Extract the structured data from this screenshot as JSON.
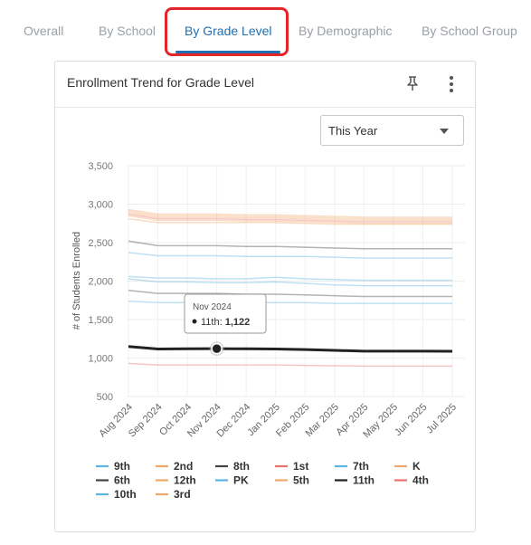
{
  "tabs": [
    {
      "label": "Overall",
      "active": false
    },
    {
      "label": "By School",
      "active": false
    },
    {
      "label": "By Grade Level",
      "active": true
    },
    {
      "label": "By Demographic",
      "active": false
    },
    {
      "label": "By School Group",
      "active": false
    }
  ],
  "card": {
    "title": "Enrollment Trend for Grade Level",
    "pin_icon": "pin-icon",
    "menu_icon": "kebab-menu-icon"
  },
  "period_select": {
    "value": "This Year"
  },
  "tooltip": {
    "date": "Nov 2024",
    "series": "11th",
    "value": "1,122"
  },
  "chart_data": {
    "type": "line",
    "ylabel": "# of Students Enrolled",
    "ylim": [
      500,
      3500
    ],
    "yticks": [
      "3,500",
      "3,000",
      "2,500",
      "2,000",
      "1,500",
      "1,000",
      "500"
    ],
    "ytick_values": [
      3500,
      3000,
      2500,
      2000,
      1500,
      1000,
      500
    ],
    "categories": [
      "Aug 2024",
      "Sep 2024",
      "Oct 2024",
      "Nov 2024",
      "Dec 2024",
      "Jan 2025",
      "Feb 2025",
      "Mar 2025",
      "Apr 2025",
      "May 2025",
      "Jun 2025",
      "Jul 2025"
    ],
    "highlight_series": "11th",
    "grid": true,
    "legend_position": "bottom",
    "series": [
      {
        "name": "9th",
        "color": "#5bb5e0",
        "values": [
          2060,
          2040,
          2040,
          2030,
          2030,
          2050,
          2030,
          2020,
          2010,
          2010,
          2010,
          2010
        ]
      },
      {
        "name": "2nd",
        "color": "#f0a86a",
        "values": [
          2930,
          2870,
          2870,
          2870,
          2860,
          2860,
          2850,
          2840,
          2830,
          2830,
          2830,
          2830
        ]
      },
      {
        "name": "8th",
        "color": "#444444",
        "values": [
          2520,
          2460,
          2460,
          2460,
          2450,
          2450,
          2440,
          2430,
          2420,
          2420,
          2420,
          2420
        ]
      },
      {
        "name": "1st",
        "color": "#e8736a",
        "values": [
          2870,
          2810,
          2810,
          2810,
          2800,
          2800,
          2790,
          2780,
          2770,
          2770,
          2770,
          2770
        ]
      },
      {
        "name": "7th",
        "color": "#5bb5e0",
        "values": [
          2370,
          2330,
          2330,
          2330,
          2320,
          2320,
          2320,
          2310,
          2300,
          2300,
          2300,
          2300
        ]
      },
      {
        "name": "K",
        "color": "#f0a86a",
        "values": [
          2890,
          2830,
          2830,
          2830,
          2820,
          2820,
          2810,
          2800,
          2790,
          2790,
          2790,
          2790
        ]
      },
      {
        "name": "6th",
        "color": "#444444",
        "values": [
          1880,
          1840,
          1840,
          1840,
          1830,
          1830,
          1820,
          1810,
          1800,
          1800,
          1800,
          1800
        ]
      },
      {
        "name": "12th",
        "color": "#f0a86a",
        "values": [
          2910,
          2850,
          2850,
          2850,
          2840,
          2840,
          2830,
          2820,
          2810,
          2810,
          2810,
          2810
        ]
      },
      {
        "name": "PK",
        "color": "#5bb5e0",
        "values": [
          1740,
          1720,
          1720,
          1720,
          1720,
          1720,
          1720,
          1710,
          1710,
          1710,
          1710,
          1710
        ]
      },
      {
        "name": "5th",
        "color": "#f0a86a",
        "values": [
          2810,
          2760,
          2760,
          2760,
          2760,
          2760,
          2750,
          2740,
          2740,
          2740,
          2740,
          2740
        ]
      },
      {
        "name": "11th",
        "color": "#222222",
        "values": [
          1150,
          1118,
          1120,
          1122,
          1120,
          1118,
          1110,
          1100,
          1090,
          1090,
          1090,
          1088
        ]
      },
      {
        "name": "4th",
        "color": "#e8736a",
        "values": [
          930,
          910,
          910,
          910,
          910,
          910,
          905,
          900,
          895,
          895,
          895,
          895
        ]
      },
      {
        "name": "10th",
        "color": "#5bb5e0",
        "values": [
          2030,
          1990,
          1990,
          1980,
          1980,
          1990,
          1970,
          1950,
          1940,
          1940,
          1940,
          1940
        ]
      },
      {
        "name": "3rd",
        "color": "#f0a86a",
        "values": [
          2850,
          2790,
          2790,
          2790,
          2780,
          2780,
          2770,
          2760,
          2750,
          2750,
          2750,
          2750
        ]
      }
    ]
  }
}
